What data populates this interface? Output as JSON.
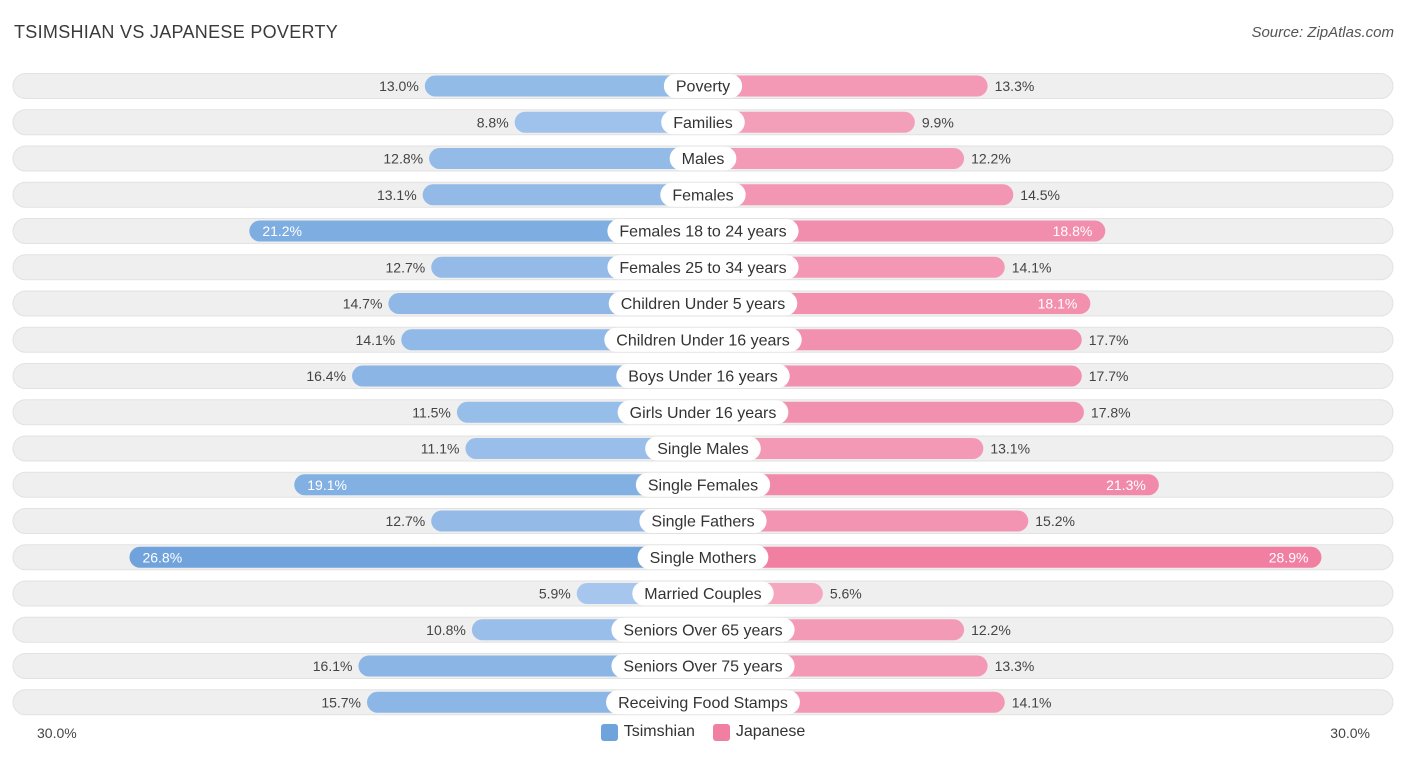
{
  "title": "TSIMSHIAN VS JAPANESE POVERTY",
  "source": "Source: ZipAtlas.com",
  "colors": {
    "tsimshian": "#6fa3dc",
    "tsimshian_light": "#a8c8ee",
    "japanese": "#f07fa2",
    "japanese_light": "#f5a8c0",
    "row_bg": "#efefef"
  },
  "chart_data": {
    "type": "bar",
    "orientation": "horizontal-diverging",
    "title": "TSIMSHIAN VS JAPANESE POVERTY",
    "categories": [
      "Poverty",
      "Families",
      "Males",
      "Females",
      "Females 18 to 24 years",
      "Females 25 to 34 years",
      "Children Under 5 years",
      "Children Under 16 years",
      "Boys Under 16 years",
      "Girls Under 16 years",
      "Single Males",
      "Single Females",
      "Single Fathers",
      "Single Mothers",
      "Married Couples",
      "Seniors Over 65 years",
      "Seniors Over 75 years",
      "Receiving Food Stamps"
    ],
    "series": [
      {
        "name": "Tsimshian",
        "values": [
          13.0,
          8.8,
          12.8,
          13.1,
          21.2,
          12.7,
          14.7,
          14.1,
          16.4,
          11.5,
          11.1,
          19.1,
          12.7,
          26.8,
          5.9,
          10.8,
          16.1,
          15.7
        ],
        "labels": [
          "13.0%",
          "8.8%",
          "12.8%",
          "13.1%",
          "21.2%",
          "12.7%",
          "14.7%",
          "14.1%",
          "16.4%",
          "11.5%",
          "11.1%",
          "19.1%",
          "12.7%",
          "26.8%",
          "5.9%",
          "10.8%",
          "16.1%",
          "15.7%"
        ]
      },
      {
        "name": "Japanese",
        "values": [
          13.3,
          9.9,
          12.2,
          14.5,
          18.8,
          14.1,
          18.1,
          17.7,
          17.7,
          17.8,
          13.1,
          21.3,
          15.2,
          28.9,
          5.6,
          12.2,
          13.3,
          14.1
        ],
        "labels": [
          "13.3%",
          "9.9%",
          "12.2%",
          "14.5%",
          "18.8%",
          "14.1%",
          "18.1%",
          "17.7%",
          "17.7%",
          "17.8%",
          "13.1%",
          "21.3%",
          "15.2%",
          "28.9%",
          "5.6%",
          "12.2%",
          "13.3%",
          "14.1%"
        ]
      }
    ],
    "xlim": [
      0,
      30.0
    ],
    "axis_labels": {
      "left": "30.0%",
      "right": "30.0%"
    },
    "legend": [
      "Tsimshian",
      "Japanese"
    ],
    "legend_position": "bottom-center"
  }
}
